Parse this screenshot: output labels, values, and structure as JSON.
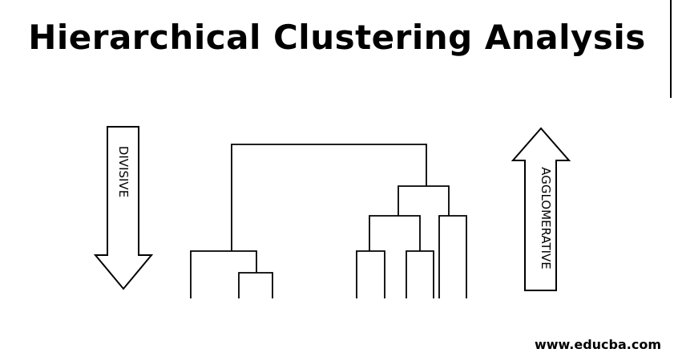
{
  "title": "Hierarchical Clustering Analysis",
  "divisive_label": "DIVISIVE",
  "agglomerative_label": "AGGLOMERATIVE",
  "watermark": "www.educba.com"
}
